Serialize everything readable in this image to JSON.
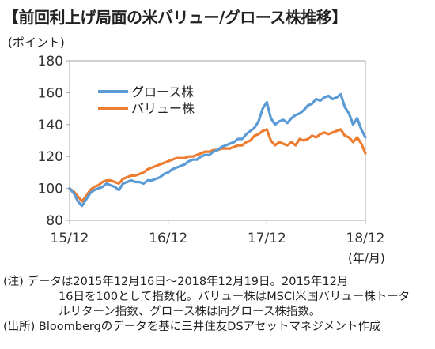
{
  "title": "【前回利上げ局面の米バリュー/グロース株推移】",
  "y_unit": "(ポイント)",
  "x_unit": "(年/月)",
  "notes": {
    "line1": "(注) データは2015年12月16日～2018年12月19日。2015年12月",
    "line2": "16日を100として指数化。バリュー株はMSCI米国バリュー株トータ",
    "line3": "ルリターン指数、グロース株は同グロース株指数。",
    "line4": "(出所) Bloombergのデータを基に三井住友DSアセットマネジメント作成"
  },
  "chart_data": {
    "type": "line",
    "title": "【前回利上げ局面の米バリュー/グロース株推移】",
    "ylabel": "(ポイント)",
    "xlabel": "(年/月)",
    "ylim": [
      80,
      180
    ],
    "yticks": [
      80,
      100,
      120,
      140,
      160,
      180
    ],
    "xlim": [
      0,
      36
    ],
    "xticks": [
      {
        "pos": 0,
        "label": "15/12"
      },
      {
        "pos": 12,
        "label": "16/12"
      },
      {
        "pos": 24,
        "label": "17/12"
      },
      {
        "pos": 36,
        "label": "18/12"
      }
    ],
    "grid": false,
    "legend_position": "top-left",
    "series": [
      {
        "name": "グロース株",
        "color": "#5b9bd5",
        "x": [
          0,
          0.5,
          1,
          1.5,
          2,
          2.5,
          3,
          3.5,
          4,
          4.5,
          5,
          5.5,
          6,
          6.5,
          7,
          7.5,
          8,
          8.5,
          9,
          9.5,
          10,
          10.5,
          11,
          11.5,
          12,
          12.5,
          13,
          13.5,
          14,
          14.5,
          15,
          15.5,
          16,
          16.5,
          17,
          17.5,
          18,
          18.5,
          19,
          19.5,
          20,
          20.5,
          21,
          21.5,
          22,
          22.5,
          23,
          23.5,
          24,
          24.5,
          25,
          25.5,
          26,
          26.5,
          27,
          27.5,
          28,
          28.5,
          29,
          29.5,
          30,
          30.5,
          31,
          31.5,
          32,
          32.5,
          33,
          33.5,
          34,
          34.5,
          35,
          35.5,
          36
        ],
        "values": [
          100,
          97,
          92,
          89,
          93,
          97,
          99,
          100,
          101,
          103,
          102,
          101,
          99,
          103,
          104,
          105,
          104,
          104,
          103,
          105,
          105,
          106,
          107,
          109,
          110,
          112,
          113,
          114,
          115,
          117,
          118,
          118,
          120,
          121,
          121,
          123,
          124,
          126,
          127,
          128,
          129,
          131,
          131,
          134,
          136,
          138,
          142,
          150,
          154,
          144,
          140,
          142,
          143,
          141,
          144,
          146,
          147,
          149,
          152,
          153,
          156,
          155,
          157,
          158,
          156,
          157,
          159,
          151,
          147,
          140,
          144,
          137,
          132
        ]
      },
      {
        "name": "バリュー株",
        "color": "#ed7d31",
        "x": [
          0,
          0.5,
          1,
          1.5,
          2,
          2.5,
          3,
          3.5,
          4,
          4.5,
          5,
          5.5,
          6,
          6.5,
          7,
          7.5,
          8,
          8.5,
          9,
          9.5,
          10,
          10.5,
          11,
          11.5,
          12,
          12.5,
          13,
          13.5,
          14,
          14.5,
          15,
          15.5,
          16,
          16.5,
          17,
          17.5,
          18,
          18.5,
          19,
          19.5,
          20,
          20.5,
          21,
          21.5,
          22,
          22.5,
          23,
          23.5,
          24,
          24.5,
          25,
          25.5,
          26,
          26.5,
          27,
          27.5,
          28,
          28.5,
          29,
          29.5,
          30,
          30.5,
          31,
          31.5,
          32,
          32.5,
          33,
          33.5,
          34,
          34.5,
          35,
          35.5,
          36
        ],
        "values": [
          100,
          98,
          95,
          92,
          95,
          99,
          101,
          102,
          104,
          105,
          105,
          104,
          103,
          106,
          107,
          108,
          108,
          109,
          110,
          112,
          113,
          114,
          115,
          116,
          117,
          118,
          119,
          119,
          119,
          120,
          120,
          121,
          122,
          123,
          123,
          124,
          124,
          125,
          125,
          125,
          126,
          127,
          127,
          129,
          130,
          133,
          134,
          136,
          137,
          130,
          127,
          129,
          128,
          127,
          129,
          127,
          131,
          130,
          131,
          133,
          132,
          134,
          135,
          134,
          135,
          136,
          137,
          133,
          132,
          129,
          132,
          128,
          122
        ]
      }
    ]
  }
}
